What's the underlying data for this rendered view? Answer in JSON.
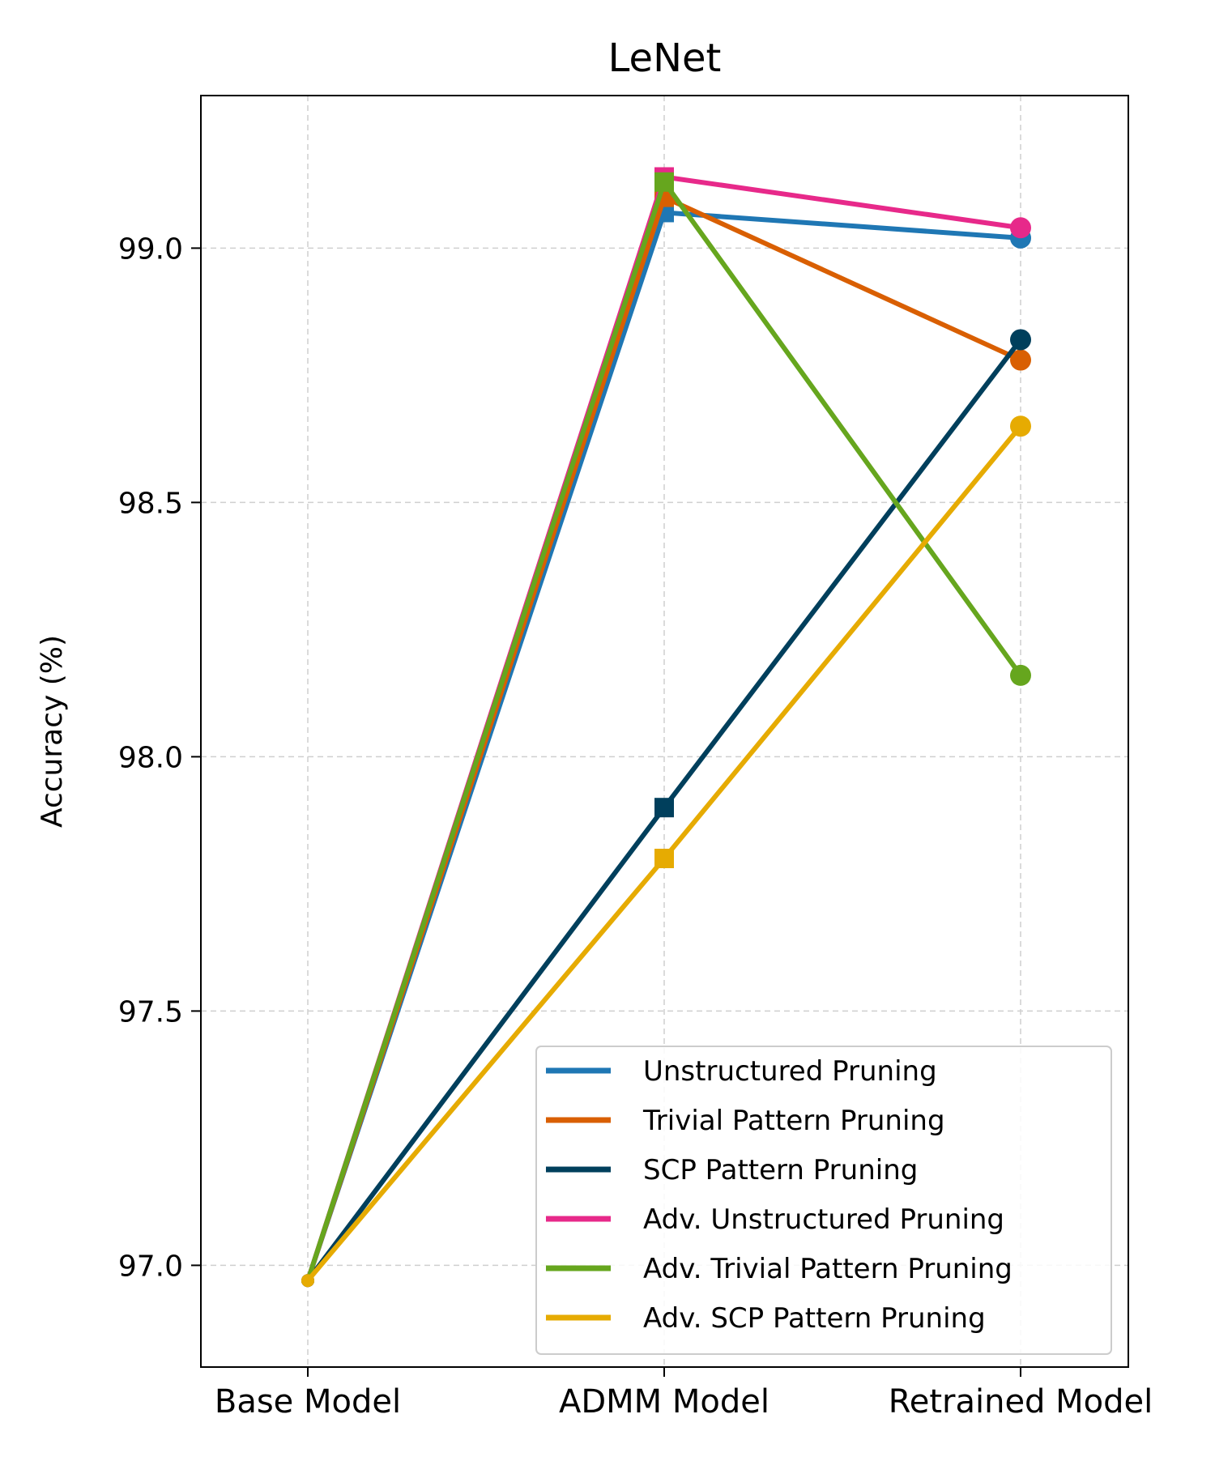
{
  "chart_data": {
    "type": "line",
    "title": "LeNet",
    "xlabel": "",
    "ylabel": "Accuracy (%)",
    "categories": [
      "Base Model",
      "ADMM Model",
      "Retrained Model"
    ],
    "ylim": [
      96.8,
      99.3
    ],
    "yticks": [
      "97.0",
      "97.5",
      "98.0",
      "98.5",
      "99.0"
    ],
    "grid": true,
    "legend_position": "lower-right",
    "series": [
      {
        "name": "Unstructured Pruning",
        "color": "#1f77b4",
        "values": [
          96.97,
          99.07,
          99.02
        ],
        "markers": [
          "circle",
          "square",
          "circle"
        ]
      },
      {
        "name": "Trivial Pattern Pruning",
        "color": "#d95f02",
        "values": [
          96.97,
          99.1,
          98.78
        ],
        "markers": [
          "circle",
          "square",
          "circle"
        ]
      },
      {
        "name": "SCP Pattern Pruning",
        "color": "#003f5c",
        "values": [
          96.97,
          97.9,
          98.82
        ],
        "markers": [
          "circle",
          "square",
          "circle"
        ]
      },
      {
        "name": "Adv. Unstructured Pruning",
        "color": "#e7298a",
        "values": [
          96.97,
          99.14,
          99.04
        ],
        "markers": [
          "circle",
          "square",
          "circle"
        ]
      },
      {
        "name": "Adv. Trivial Pattern Pruning",
        "color": "#66a61e",
        "values": [
          96.97,
          99.13,
          98.16
        ],
        "markers": [
          "circle",
          "square",
          "circle"
        ]
      },
      {
        "name": "Adv. SCP Pattern Pruning",
        "color": "#e6ab02",
        "values": [
          96.97,
          97.8,
          98.65
        ],
        "markers": [
          "circle",
          "square",
          "circle"
        ]
      }
    ]
  }
}
